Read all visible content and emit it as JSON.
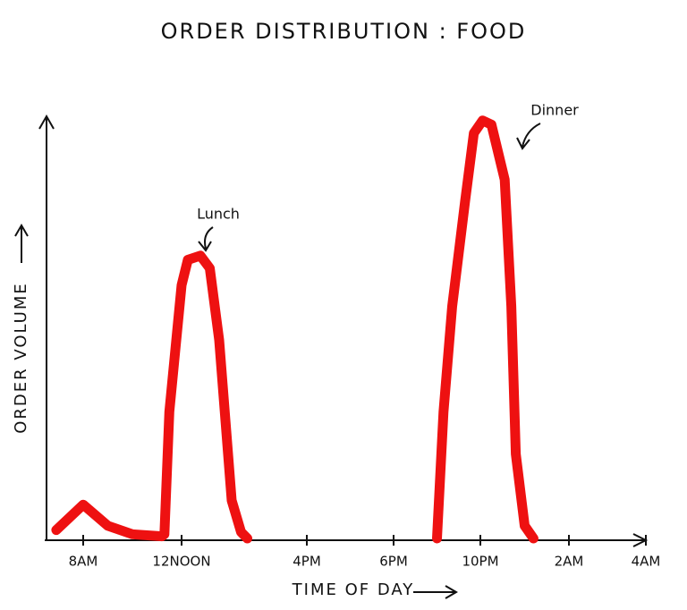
{
  "chart_data": {
    "type": "line",
    "title": "ORDER DISTRIBUTION : FOOD",
    "x_label": "TIME OF DAY",
    "y_label": "ORDER VOLUME",
    "annotations": [
      "Lunch",
      "Dinner"
    ],
    "x": [
      6.9,
      8,
      9,
      10,
      11.2,
      11.3,
      11.5,
      12,
      12.2,
      12.6,
      12.9,
      13.2,
      13.6,
      13.9,
      14.1,
      17,
      20,
      20.3,
      20.7,
      21.3,
      21.7,
      22.1,
      22.5,
      23.1,
      23.4,
      23.6,
      24,
      24.4
    ],
    "series": [
      {
        "name": "Orders",
        "color": "#ee1111",
        "values": [
          2,
          8,
          3,
          1,
          0.5,
          1,
          30,
          60,
          66,
          67,
          64,
          47,
          9,
          1.5,
          0,
          null,
          0,
          30,
          55,
          80,
          96,
          99,
          98,
          85,
          55,
          20,
          3,
          0
        ]
      }
    ],
    "xlim": [
      6.5,
      28
    ],
    "ylim": [
      0,
      100
    ],
    "xticks": [
      {
        "value": 8,
        "label": "8AM"
      },
      {
        "value": 12,
        "label": "12NOON"
      },
      {
        "value": 16,
        "label": "4PM"
      },
      {
        "value": 18,
        "label": "6PM"
      },
      {
        "value": 22,
        "label": "10PM"
      },
      {
        "value": 26,
        "label": "2AM"
      },
      {
        "value": 28,
        "label": "4AM"
      }
    ],
    "grid": false
  }
}
